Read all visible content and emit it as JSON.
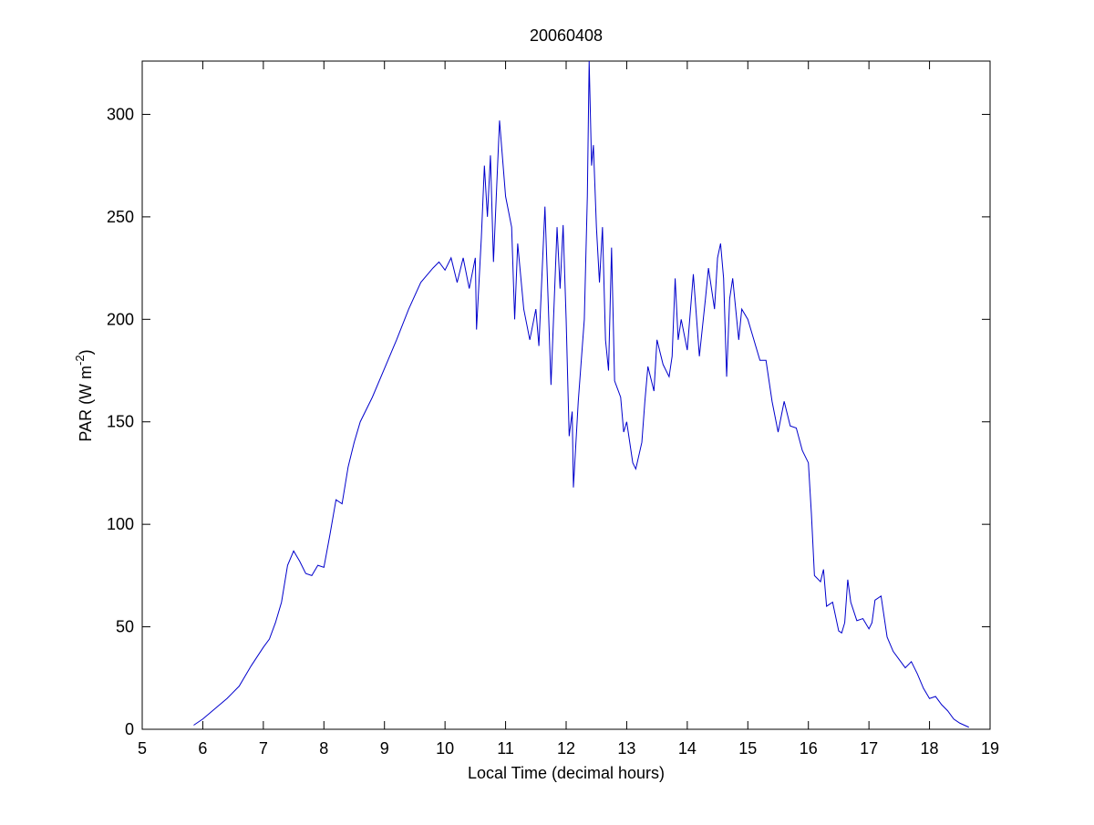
{
  "chart_data": {
    "type": "line",
    "title": "20060408",
    "x_label": "Local Time (decimal hours)",
    "y_label": [
      "PAR (W m",
      "-2",
      ")"
    ],
    "color": "#0000cc",
    "xlim": [
      5,
      19
    ],
    "ylim": [
      0,
      326
    ],
    "xticks": [
      5,
      6,
      7,
      8,
      9,
      10,
      11,
      12,
      13,
      14,
      15,
      16,
      17,
      18,
      19
    ],
    "yticks": [
      0,
      50,
      100,
      150,
      200,
      250,
      300
    ],
    "grid": false,
    "x": [
      5.85,
      6.0,
      6.2,
      6.4,
      6.6,
      6.8,
      7.0,
      7.1,
      7.2,
      7.3,
      7.4,
      7.5,
      7.6,
      7.7,
      7.8,
      7.9,
      8.0,
      8.1,
      8.2,
      8.3,
      8.4,
      8.5,
      8.6,
      8.8,
      9.0,
      9.2,
      9.4,
      9.6,
      9.8,
      9.9,
      10.0,
      10.1,
      10.2,
      10.3,
      10.4,
      10.5,
      10.52,
      10.6,
      10.65,
      10.7,
      10.75,
      10.8,
      10.9,
      11.0,
      11.1,
      11.15,
      11.2,
      11.3,
      11.4,
      11.5,
      11.55,
      11.65,
      11.75,
      11.85,
      11.9,
      11.95,
      12.0,
      12.05,
      12.1,
      12.12,
      12.2,
      12.3,
      12.35,
      12.38,
      12.42,
      12.45,
      12.5,
      12.55,
      12.6,
      12.65,
      12.7,
      12.75,
      12.8,
      12.9,
      12.95,
      13.0,
      13.1,
      13.15,
      13.25,
      13.3,
      13.35,
      13.45,
      13.5,
      13.6,
      13.7,
      13.75,
      13.8,
      13.85,
      13.9,
      14.0,
      14.1,
      14.2,
      14.3,
      14.35,
      14.45,
      14.5,
      14.55,
      14.6,
      14.65,
      14.7,
      14.75,
      14.85,
      14.9,
      15.0,
      15.1,
      15.2,
      15.3,
      15.4,
      15.5,
      15.6,
      15.7,
      15.8,
      15.9,
      16.0,
      16.05,
      16.1,
      16.2,
      16.25,
      16.3,
      16.4,
      16.5,
      16.55,
      16.6,
      16.65,
      16.7,
      16.8,
      16.9,
      17.0,
      17.05,
      17.1,
      17.2,
      17.3,
      17.4,
      17.5,
      17.6,
      17.7,
      17.8,
      17.9,
      18.0,
      18.1,
      18.2,
      18.3,
      18.4,
      18.5,
      18.65
    ],
    "values": [
      2,
      5,
      10,
      15,
      21,
      31,
      40,
      44,
      52,
      62,
      80,
      87,
      82,
      76,
      75,
      80,
      79,
      95,
      112,
      110,
      128,
      140,
      150,
      162,
      176,
      190,
      205,
      218,
      225,
      228,
      224,
      230,
      218,
      230,
      215,
      230,
      195,
      240,
      275,
      250,
      280,
      228,
      297,
      260,
      245,
      200,
      237,
      205,
      190,
      205,
      187,
      255,
      168,
      245,
      215,
      246,
      200,
      143,
      155,
      118,
      160,
      200,
      260,
      326,
      275,
      285,
      245,
      218,
      245,
      190,
      175,
      235,
      170,
      162,
      145,
      150,
      130,
      127,
      140,
      160,
      177,
      165,
      190,
      178,
      172,
      182,
      220,
      190,
      200,
      185,
      222,
      182,
      210,
      225,
      205,
      230,
      237,
      220,
      172,
      210,
      220,
      190,
      205,
      200,
      190,
      180,
      180,
      160,
      145,
      160,
      148,
      147,
      136,
      130,
      105,
      75,
      72,
      78,
      60,
      62,
      48,
      47,
      52,
      73,
      62,
      53,
      54,
      49,
      52,
      63,
      65,
      45,
      38,
      34,
      30,
      33,
      27,
      20,
      15,
      16,
      12,
      9,
      5,
      3,
      1
    ]
  }
}
